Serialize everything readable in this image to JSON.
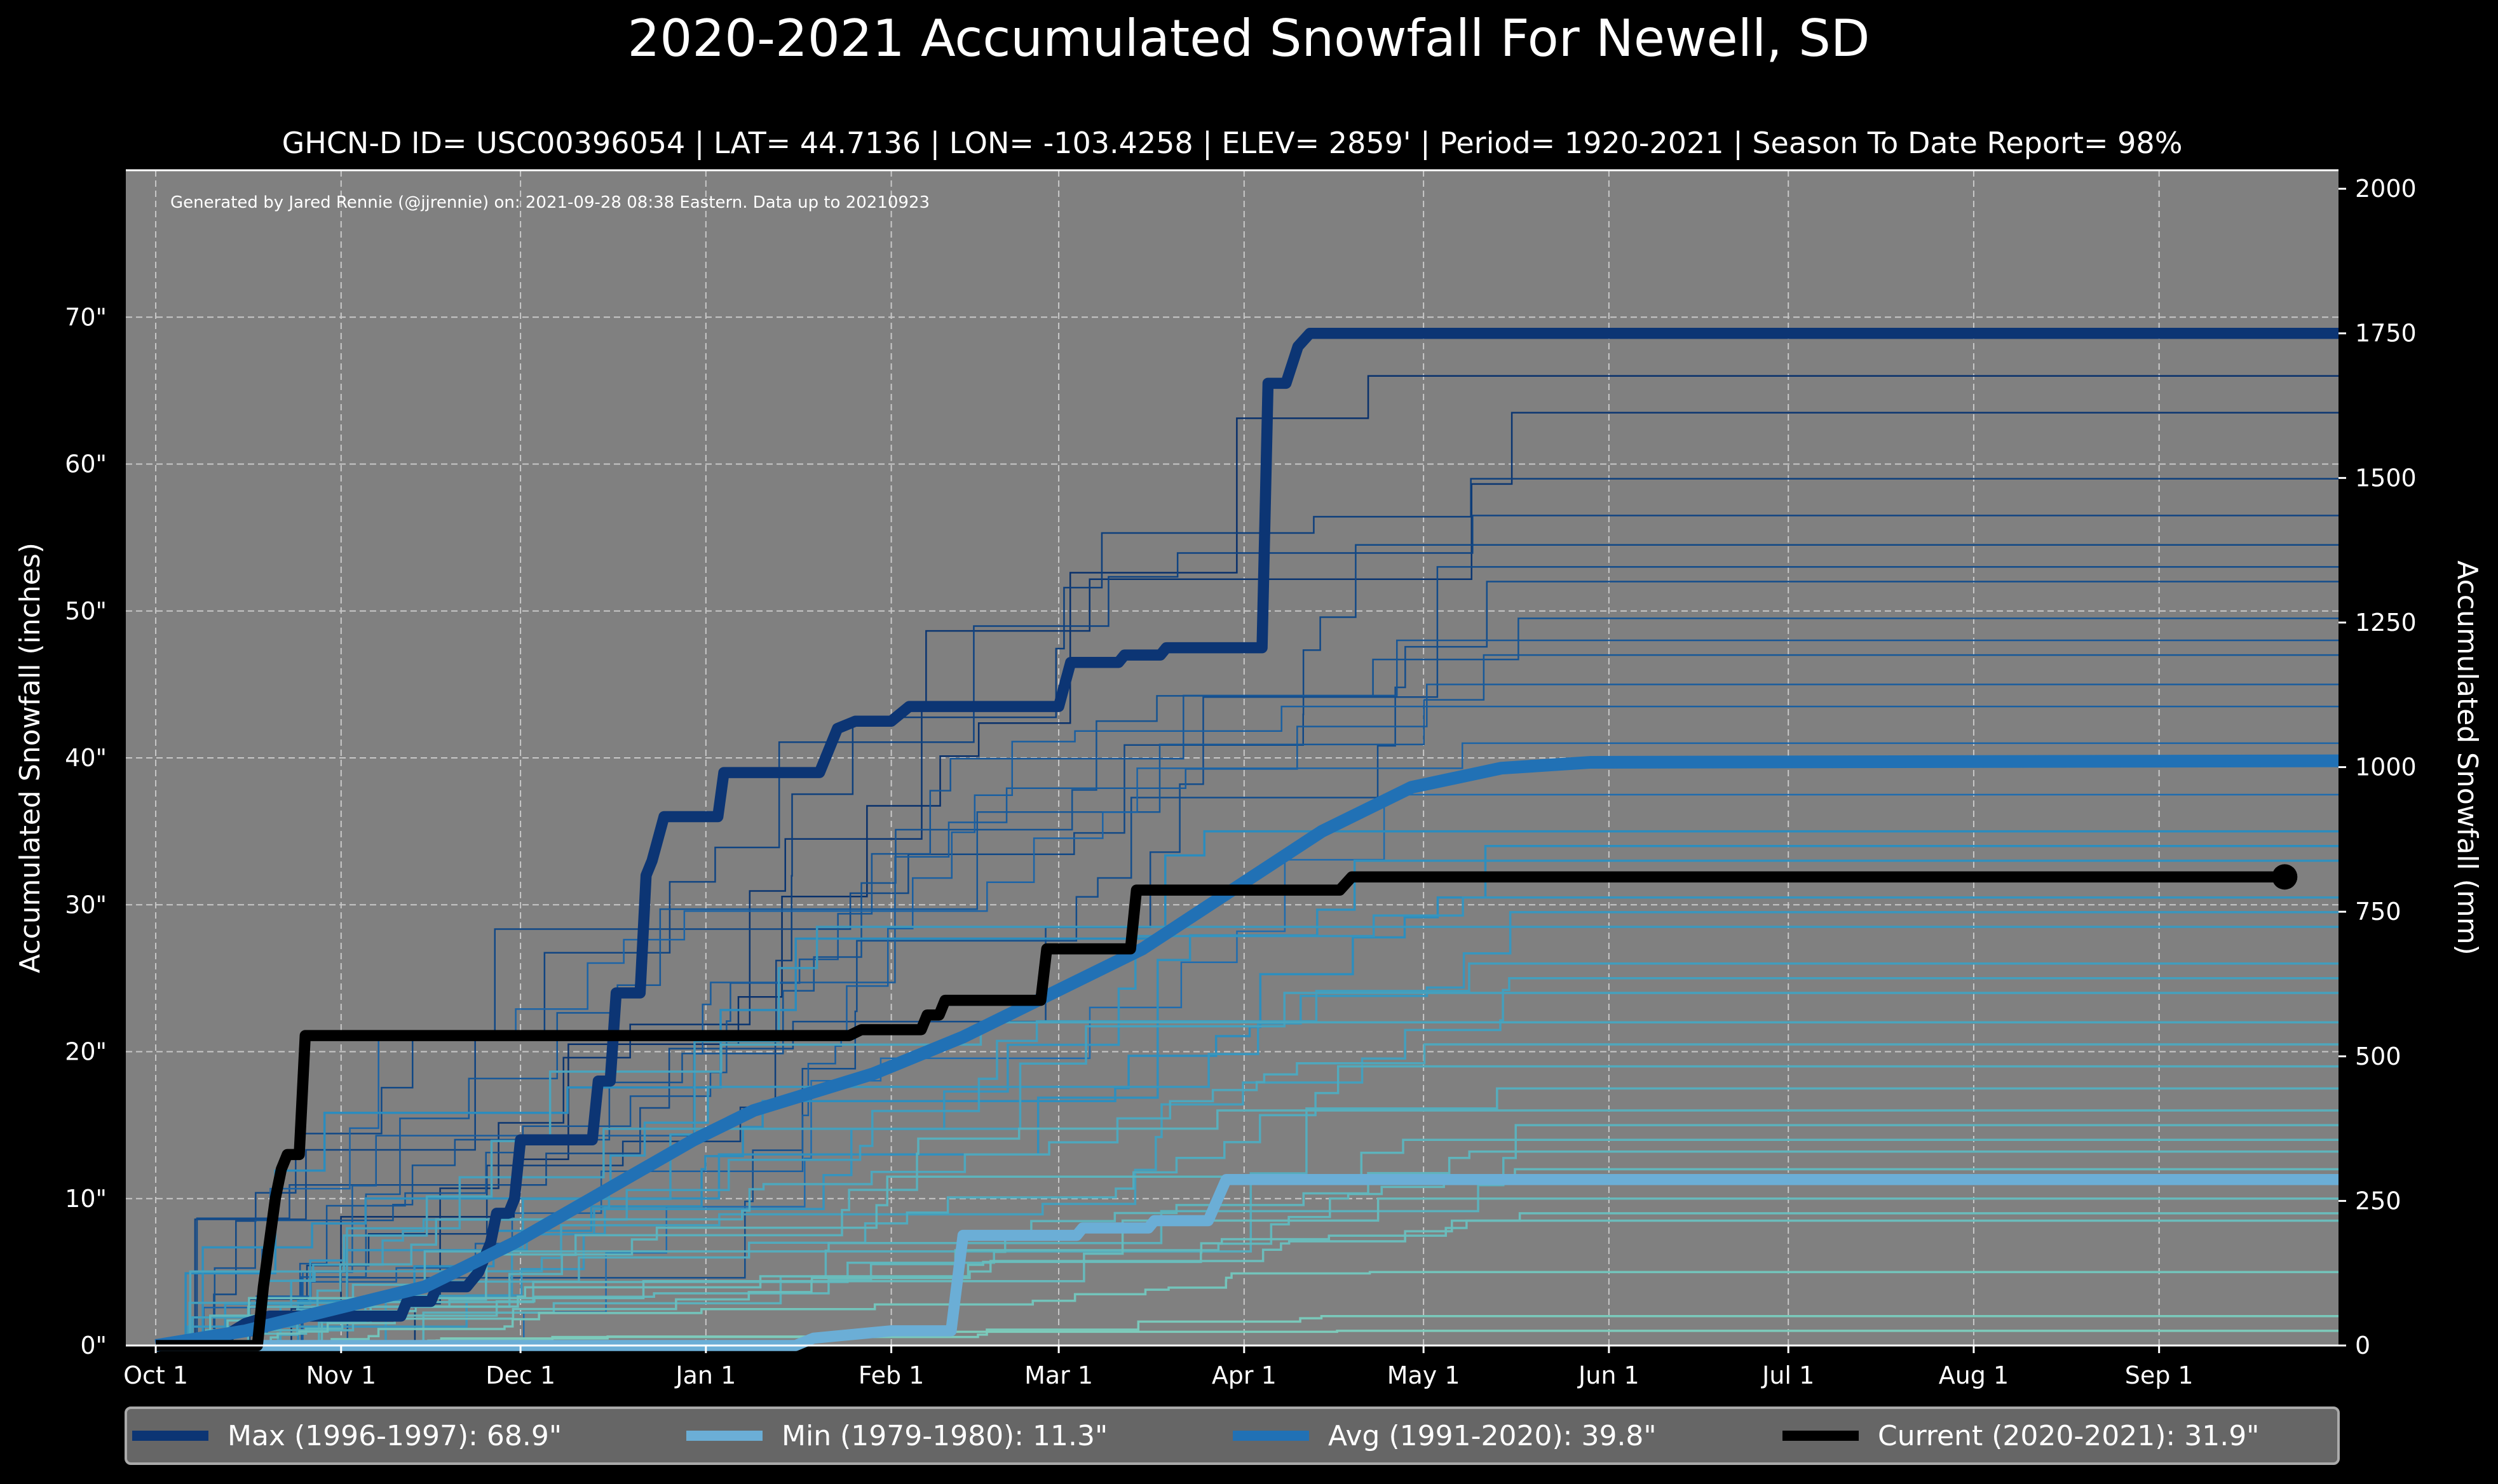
{
  "chart_data": {
    "type": "line",
    "title": "2020-2021 Accumulated Snowfall For Newell, SD",
    "subtitle": "GHCN-D ID= USC00396054 | LAT= 44.7136 | LON= -103.4258 | ELEV= 2859' | Period= 1920-2021 | Season To Date Report= 98%",
    "credit": "Generated by Jared Rennie (@jjrennie) on: 2021-09-28 08:38 Eastern. Data up to 20210923",
    "ylabel": "Accumulated Snowfall (inches)",
    "ylabel_right": "Accumulated Snowfall (mm)",
    "x_unit": "days since Oct 1",
    "xlim": [
      -5,
      365
    ],
    "ylim": [
      0,
      80
    ],
    "grid": true,
    "x_ticks": [
      {
        "day": 0,
        "label": "Oct 1"
      },
      {
        "day": 31,
        "label": "Nov 1"
      },
      {
        "day": 61,
        "label": "Dec 1"
      },
      {
        "day": 92,
        "label": "Jan 1"
      },
      {
        "day": 123,
        "label": "Feb 1"
      },
      {
        "day": 151,
        "label": "Mar 1"
      },
      {
        "day": 182,
        "label": "Apr 1"
      },
      {
        "day": 212,
        "label": "May 1"
      },
      {
        "day": 243,
        "label": "Jun 1"
      },
      {
        "day": 273,
        "label": "Jul 1"
      },
      {
        "day": 304,
        "label": "Aug 1"
      },
      {
        "day": 335,
        "label": "Sep 1"
      }
    ],
    "y_ticks": [
      {
        "value": 0,
        "label": "0\""
      },
      {
        "value": 10,
        "label": "10\""
      },
      {
        "value": 20,
        "label": "20\""
      },
      {
        "value": 30,
        "label": "30\""
      },
      {
        "value": 40,
        "label": "40\""
      },
      {
        "value": 50,
        "label": "50\""
      },
      {
        "value": 60,
        "label": "60\""
      },
      {
        "value": 70,
        "label": "70\""
      }
    ],
    "y_ticks_right_mm": [
      0,
      250,
      500,
      750,
      1000,
      1250,
      1500,
      1750,
      2000
    ],
    "legend_position": "bottom",
    "series": [
      {
        "name": "Max (1996-1997):   68.9\"",
        "color": "#0c3574",
        "width": 7,
        "points": [
          [
            0,
            0
          ],
          [
            11,
            0
          ],
          [
            13,
            1
          ],
          [
            15,
            1.5
          ],
          [
            19,
            2
          ],
          [
            41,
            2
          ],
          [
            42,
            3
          ],
          [
            46,
            3
          ],
          [
            47,
            4
          ],
          [
            52,
            4
          ],
          [
            54,
            5
          ],
          [
            56,
            7
          ],
          [
            57,
            9
          ],
          [
            59,
            9
          ],
          [
            60,
            10
          ],
          [
            61,
            14
          ],
          [
            73,
            14
          ],
          [
            74,
            18
          ],
          [
            76,
            18
          ],
          [
            77,
            24
          ],
          [
            81,
            24
          ],
          [
            82,
            32
          ],
          [
            83,
            33
          ],
          [
            85,
            36
          ],
          [
            94,
            36
          ],
          [
            95,
            39
          ],
          [
            111,
            39
          ],
          [
            113,
            41
          ],
          [
            114,
            42
          ],
          [
            117,
            42.5
          ],
          [
            123,
            42.5
          ],
          [
            126,
            43.5
          ],
          [
            151,
            43.5
          ],
          [
            153,
            46.5
          ],
          [
            161,
            46.5
          ],
          [
            162,
            47
          ],
          [
            168,
            47
          ],
          [
            169,
            47.5
          ],
          [
            185,
            47.5
          ],
          [
            186,
            65.5
          ],
          [
            189,
            65.5
          ],
          [
            191,
            68
          ],
          [
            193,
            68.9
          ],
          [
            365,
            68.9
          ]
        ]
      },
      {
        "name": "Min (1979-1980):   11.3\"",
        "color": "#6baed6",
        "width": 7,
        "points": [
          [
            0,
            0
          ],
          [
            107,
            0
          ],
          [
            110,
            0.5
          ],
          [
            123,
            1
          ],
          [
            133,
            1
          ],
          [
            135,
            7.5
          ],
          [
            154,
            7.5
          ],
          [
            155,
            8
          ],
          [
            166,
            8
          ],
          [
            167,
            8.5
          ],
          [
            176,
            8.5
          ],
          [
            179,
            11.3
          ],
          [
            365,
            11.3
          ]
        ]
      },
      {
        "name": "Avg (1991-2020):   39.8\"",
        "color": "#2171b5",
        "width": 8,
        "points": [
          [
            0,
            0
          ],
          [
            15,
            1
          ],
          [
            30,
            2.5
          ],
          [
            45,
            4
          ],
          [
            60,
            7
          ],
          [
            75,
            10.5
          ],
          [
            90,
            14
          ],
          [
            100,
            16
          ],
          [
            120,
            18.5
          ],
          [
            135,
            21
          ],
          [
            150,
            24
          ],
          [
            165,
            27
          ],
          [
            180,
            31
          ],
          [
            195,
            35
          ],
          [
            210,
            38
          ],
          [
            225,
            39.3
          ],
          [
            240,
            39.7
          ],
          [
            365,
            39.8
          ]
        ]
      },
      {
        "name": "Current (2020-2021):   31.9\"",
        "color": "#000000",
        "width": 7,
        "points": [
          [
            0,
            0
          ],
          [
            17,
            0
          ],
          [
            18,
            4
          ],
          [
            20,
            10
          ],
          [
            21,
            12
          ],
          [
            22,
            13
          ],
          [
            24,
            13
          ],
          [
            25,
            21.1
          ],
          [
            116,
            21.1
          ],
          [
            118,
            21.5
          ],
          [
            128,
            21.5
          ],
          [
            129,
            22.5
          ],
          [
            131,
            22.5
          ],
          [
            132,
            23.5
          ],
          [
            148,
            23.5
          ],
          [
            149,
            27
          ],
          [
            163,
            27
          ],
          [
            164,
            31
          ],
          [
            198,
            31
          ],
          [
            200,
            31.9
          ],
          [
            356,
            31.9
          ]
        ]
      }
    ],
    "other_seasons_final_totals": [
      66,
      63.5,
      59,
      56.5,
      54.5,
      53,
      52,
      49.5,
      48,
      47,
      45,
      43.5,
      41,
      37.5,
      35,
      34,
      33,
      30.5,
      29.5,
      28.5,
      26,
      25,
      24,
      22,
      20.5,
      19,
      17.5,
      16,
      15,
      14,
      13.2,
      12,
      10,
      9,
      8.5,
      5,
      2,
      1
    ],
    "colors": {
      "background": "#000000",
      "plot": "#808080",
      "legend": "#666666",
      "grid": "#bdbdbd"
    }
  }
}
